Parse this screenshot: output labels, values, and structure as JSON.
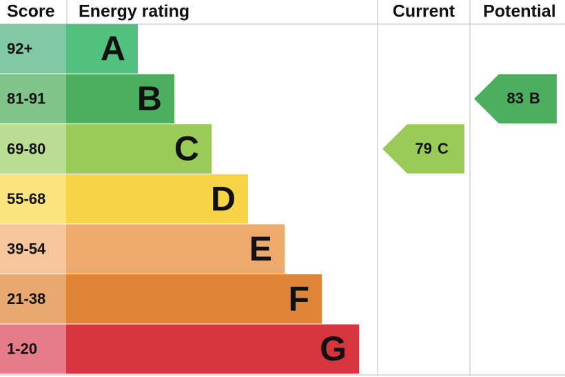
{
  "header": {
    "score": "Score",
    "energy_rating": "Energy rating",
    "current": "Current",
    "potential": "Potential"
  },
  "rows": [
    {
      "score": "92+",
      "letter": "A"
    },
    {
      "score": "81-91",
      "letter": "B"
    },
    {
      "score": "69-80",
      "letter": "C"
    },
    {
      "score": "55-68",
      "letter": "D"
    },
    {
      "score": "39-54",
      "letter": "E"
    },
    {
      "score": "21-38",
      "letter": "F"
    },
    {
      "score": "1-20",
      "letter": "G"
    }
  ],
  "current": {
    "value": "79",
    "letter": "C"
  },
  "potential": {
    "value": "83",
    "letter": "B"
  }
}
